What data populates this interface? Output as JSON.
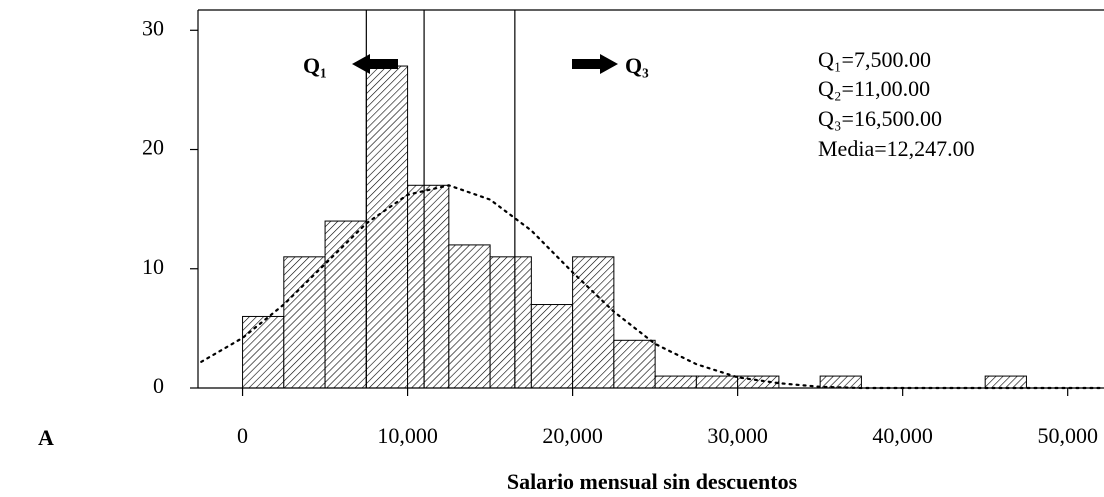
{
  "chart_data": {
    "type": "histogram",
    "xlabel": "Salario mensual sin descuentos",
    "panel_label": "A",
    "bins": [
      0,
      2500,
      5000,
      7500,
      10000,
      12500,
      15000,
      17500,
      20000,
      22500,
      25000,
      27500,
      30000,
      32500,
      35000,
      37500,
      40000,
      42500,
      45000,
      47500
    ],
    "values": [
      6,
      11,
      14,
      27,
      17,
      12,
      11,
      7,
      11,
      4,
      1,
      1,
      1,
      0,
      1,
      0,
      0,
      0,
      1
    ],
    "color": "#000000",
    "curve": {
      "x": [
        -2500,
        0,
        2500,
        5000,
        7500,
        10000,
        12500,
        15000,
        17500,
        20000,
        22500,
        25000,
        27500,
        30000,
        32500,
        35000,
        37500,
        40000,
        42500,
        45000,
        47500,
        50000,
        52000
      ],
      "y": [
        2.2,
        4.2,
        7.0,
        10.4,
        13.8,
        16.2,
        17.0,
        15.8,
        13.2,
        9.7,
        6.4,
        3.7,
        2.0,
        0.9,
        0.4,
        0.1,
        0,
        0,
        0,
        0,
        0,
        0,
        0
      ]
    },
    "quartile_lines": [
      7500,
      11000,
      16500
    ],
    "arrow_labels": [
      "Q₁",
      "Q₃"
    ],
    "annotations": [
      "Q₁=7,500.00",
      "Q₂=11,00.00",
      "Q₃=16,500.00",
      "Media=12,247.00"
    ],
    "xlim": [
      -2700,
      52200
    ],
    "ylim": [
      0,
      31.7
    ],
    "xticks": [
      0,
      {
        "value": 10000,
        "label": "10,000"
      },
      {
        "value": 20000,
        "label": "20,000"
      },
      {
        "value": 30000,
        "label": "30,000"
      },
      {
        "value": 40000,
        "label": "40,000"
      },
      {
        "value": 50000,
        "label": "50,000"
      }
    ],
    "yticks": [
      0,
      10,
      20,
      30
    ]
  }
}
